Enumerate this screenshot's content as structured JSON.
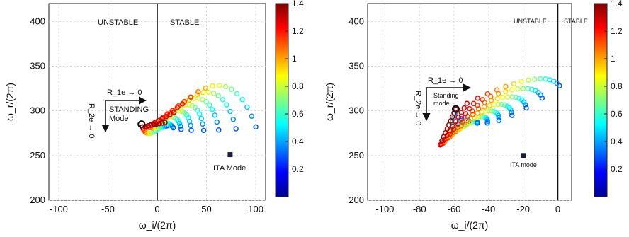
{
  "chart_data": [
    {
      "type": "scatter",
      "xlabel": "ω_i/(2π)",
      "ylabel": "ω_r/(2π)",
      "xlim": [
        -110,
        110
      ],
      "ylim": [
        200,
        420
      ],
      "xticks": [
        -100,
        -50,
        0,
        50,
        100
      ],
      "yticks": [
        200,
        250,
        300,
        350,
        400
      ],
      "grid": true,
      "stability_boundary_x": 0,
      "region_labels": {
        "left": "UNSTABLE",
        "right": "STABLE"
      },
      "colorbar": {
        "min": 0,
        "max": 1.4,
        "ticks": [
          0.2,
          0.4,
          0.6,
          0.8,
          1,
          1.2,
          1.4
        ],
        "tick_labels": [
          "0.2",
          "0.4",
          "0.6",
          "0.8",
          "1",
          "1.2",
          "1.4"
        ],
        "placement": "right"
      },
      "annotations": {
        "arrow_r1e": "R_1e → 0",
        "arrow_r2e": "R_2e → 0",
        "standing_label": [
          "STANDING",
          "Mode"
        ],
        "standing_point": {
          "x": -16,
          "y": 285
        },
        "ita_label": "ITA Mode",
        "ita_point": {
          "x": 74,
          "y": 251
        }
      },
      "curves": {
        "n": 9,
        "points_per_curve": 15,
        "color_range": [
          0.3,
          1.35
        ],
        "inner_start": [
          -15,
          282
        ],
        "inner_end": [
          8,
          287
        ],
        "outer_start": [
          -10,
          265
        ],
        "outer_end": [
          72,
          372
        ],
        "end_start": [
          8,
          287
        ],
        "end_control": [
          15,
          272
        ],
        "end_end": [
          100,
          282
        ]
      }
    },
    {
      "type": "scatter",
      "xlabel": "ω_i/(2π)",
      "ylabel": "ω_r/(2π)",
      "xlim": [
        -110,
        8
      ],
      "ylim": [
        200,
        420
      ],
      "xticks": [
        -100,
        -80,
        -60,
        -40,
        -20,
        0
      ],
      "yticks": [
        200,
        250,
        300,
        350,
        400
      ],
      "grid": true,
      "stability_boundary_x": 0,
      "region_labels": {
        "left": "UNSTABLE",
        "right": "STABLE"
      },
      "colorbar": {
        "min": 0,
        "max": 1.4,
        "ticks": [
          0.2,
          0.4,
          0.6,
          0.8,
          1,
          1.2,
          1.4
        ],
        "tick_labels": [
          "0.2",
          "0.4",
          "0.6",
          "0.8",
          "1",
          "1.2",
          "1.4"
        ],
        "placement": "right"
      },
      "annotations": {
        "arrow_r1e": "R_1e → 0",
        "arrow_r2e": "R_2e → 0",
        "standing_label": [
          "Standing",
          "mode"
        ],
        "standing_point": {
          "x": -59,
          "y": 302
        },
        "ita_label": "ITA mode",
        "ita_point": {
          "x": -20,
          "y": 250
        }
      },
      "curves": {
        "n": 10,
        "points_per_curve": 16,
        "color_range": [
          0.3,
          1.35
        ],
        "inner_start": [
          -68,
          262
        ],
        "inner_end": [
          -59,
          302
        ],
        "outer_start": [
          -63,
          264
        ],
        "outer_end": [
          -9,
          352
        ],
        "end_start": [
          -59,
          302
        ],
        "end_control": [
          -46,
          260
        ],
        "end_end": [
          1,
          328
        ]
      }
    }
  ]
}
